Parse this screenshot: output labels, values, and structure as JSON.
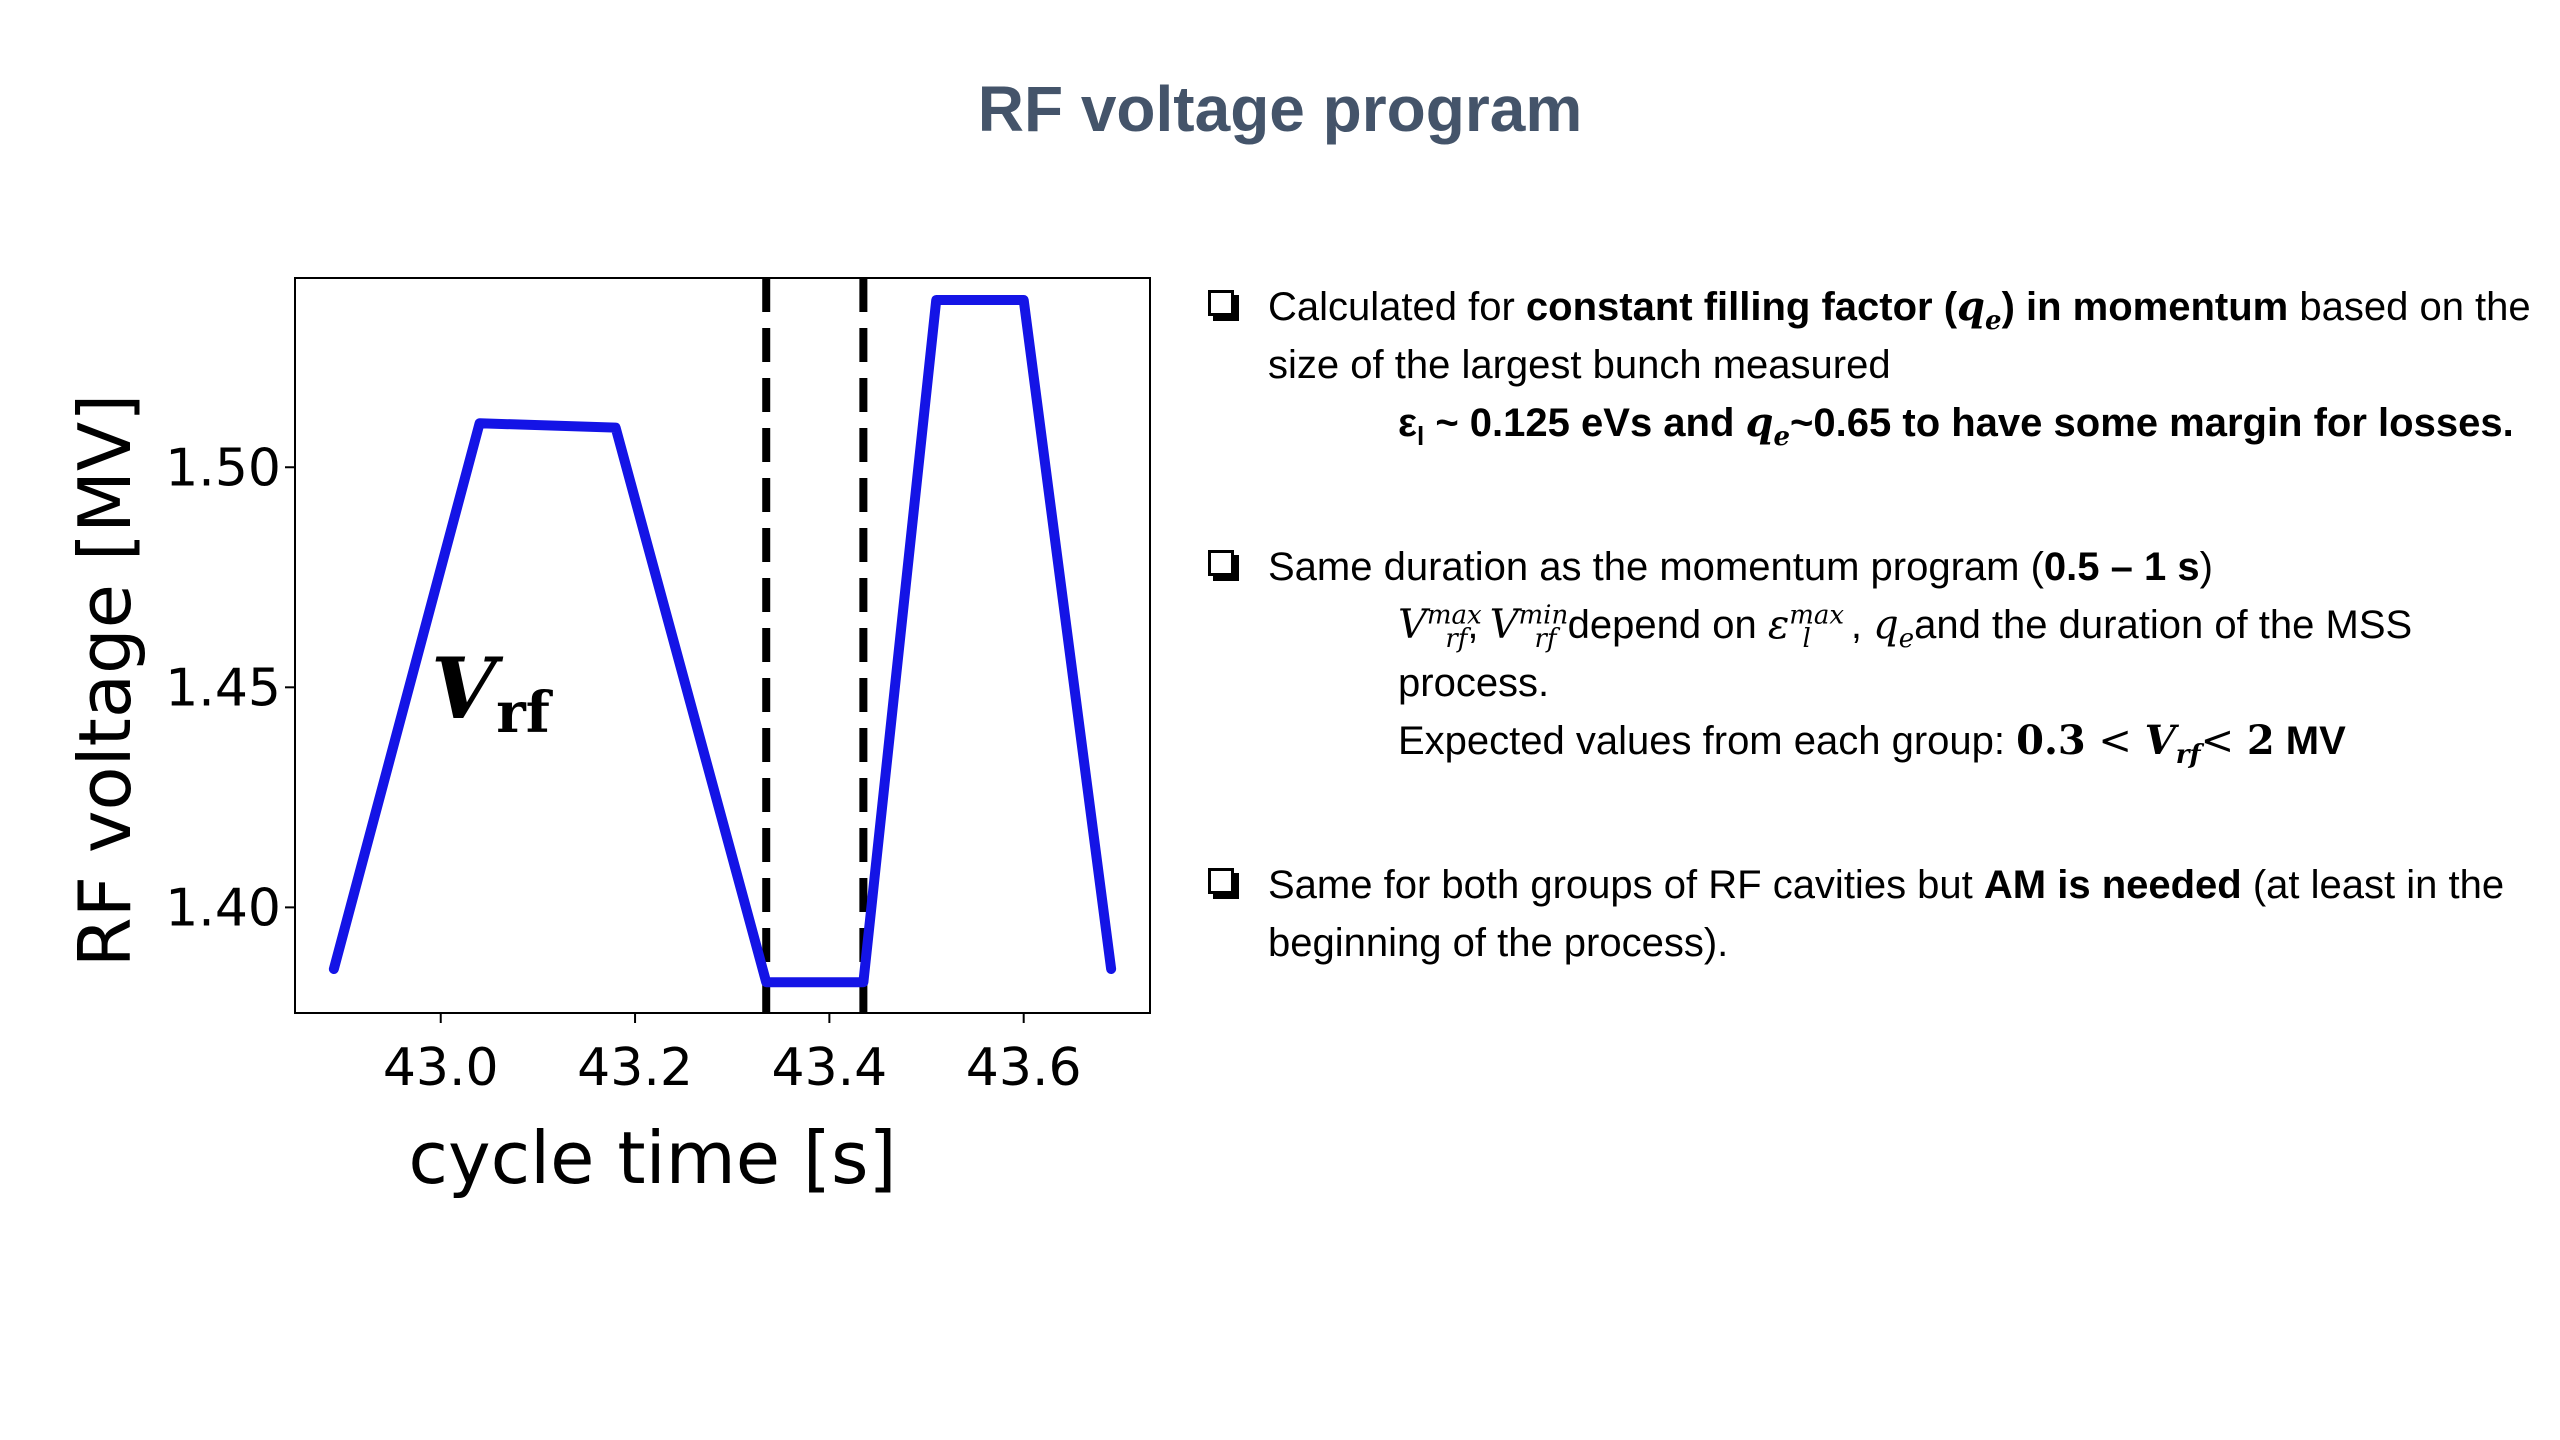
{
  "slide": {
    "title": "RF voltage program"
  },
  "chart_data": {
    "type": "line",
    "xlabel": "cycle time [s]",
    "ylabel": "RF voltage [MV]",
    "xlim": [
      42.85,
      43.73
    ],
    "ylim": [
      1.376,
      1.543
    ],
    "x_ticks": [
      43.0,
      43.2,
      43.4,
      43.6
    ],
    "x_tick_labels": [
      "43.0",
      "43.2",
      "43.4",
      "43.6"
    ],
    "y_ticks": [
      1.4,
      1.45,
      1.5
    ],
    "y_tick_labels": [
      "1.40",
      "1.45",
      "1.50"
    ],
    "grid": false,
    "series": [
      {
        "color": "#1414e6",
        "x": [
          42.89,
          43.04,
          43.18,
          43.335,
          43.435,
          43.51,
          43.6,
          43.69
        ],
        "y": [
          1.386,
          1.51,
          1.509,
          1.383,
          1.383,
          1.538,
          1.538,
          1.386
        ]
      }
    ],
    "vlines": [
      43.335,
      43.435
    ],
    "vline_style": "dashed",
    "annotation": {
      "text": "V",
      "sub": "rf",
      "x": 42.99,
      "y": 1.443
    }
  },
  "bullets": {
    "b1": {
      "t1": "Calculated for ",
      "t2": "constant filling factor (",
      "q": "q",
      "qsub": "e",
      "t3": ") in momentum",
      "t4": " based on the size of the largest bunch measured",
      "l2a": "ε",
      "l2sub": "l",
      "l2b": " ~ 0.125 eVs and ",
      "l2q": "q",
      "l2qsub": "e",
      "l2c": "~0.65 to have some margin for losses."
    },
    "b2": {
      "t1": "Same duration as the momentum program (",
      "t2": "0.5 – 1 s",
      "t3": ")",
      "v": "V",
      "vsub": "rf",
      "vsup_max": "max",
      "sep": ", ",
      "vsup_min": "min",
      "dep": " depend on ",
      "eps": "ε",
      "epssub": "l",
      "epssup": "max",
      "comma": ", ",
      "q": "q",
      "qsub": "e",
      "rest": "and the duration of the MSS process.",
      "exp": "Expected values from each group: ",
      "lo": "0.3",
      "lt": " < ",
      "vr": "V",
      "vrsub": "rf",
      "lt2": "< ",
      "hi": "2",
      "unit": " MV"
    },
    "b3": {
      "t1": "Same for both groups of RF cavities but ",
      "t2": "AM is needed",
      "t3": " (at least in the beginning of the process)."
    }
  }
}
